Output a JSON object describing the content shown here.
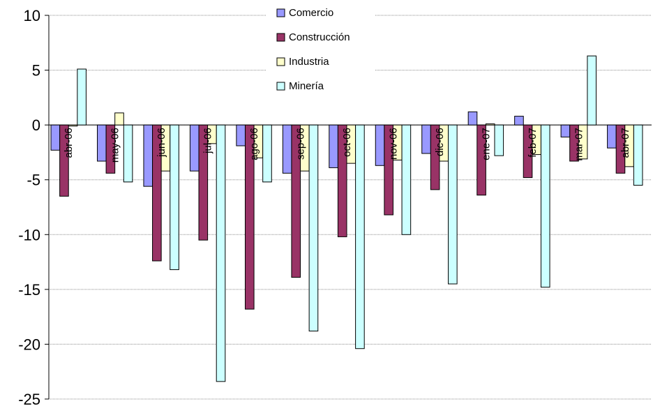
{
  "chart_data": {
    "type": "bar",
    "title": "",
    "xlabel": "",
    "ylabel": "",
    "ylim": [
      -25,
      10
    ],
    "yticks": [
      10,
      5,
      0,
      -5,
      -10,
      -15,
      -20,
      -25
    ],
    "grid": true,
    "legend": "top-center",
    "categories": [
      "abr-06",
      "may-06",
      "jun-06",
      "jul-06",
      "ago-06",
      "sep-06",
      "oct-06",
      "nov-06",
      "dic-06",
      "ene-07",
      "feb-07",
      "mar-07",
      "abr-07"
    ],
    "series": [
      {
        "name": "Comercio",
        "color": "#9999ff",
        "values": [
          -2.3,
          -3.3,
          -5.6,
          -4.2,
          -1.9,
          -4.4,
          -3.9,
          -3.7,
          -2.6,
          1.2,
          0.8,
          -1.1,
          -2.1
        ]
      },
      {
        "name": "Construcción",
        "color": "#993366",
        "values": [
          -6.5,
          -4.4,
          -12.4,
          -10.5,
          -16.8,
          -13.9,
          -10.2,
          -8.2,
          -5.9,
          -6.4,
          -4.8,
          -3.3,
          -4.4
        ]
      },
      {
        "name": "Industria",
        "color": "#ffffcc",
        "values": [
          -0.1,
          1.1,
          -4.2,
          -1.7,
          -3.0,
          -4.2,
          -3.5,
          -3.2,
          -3.3,
          0.1,
          -2.7,
          -3.1,
          -3.8
        ]
      },
      {
        "name": "Minería",
        "color": "#ccffff",
        "values": [
          5.1,
          -5.2,
          -13.2,
          -23.4,
          -5.2,
          -18.8,
          -20.4,
          -10.0,
          -14.5,
          -2.8,
          -14.8,
          6.3,
          -5.5
        ]
      }
    ]
  }
}
